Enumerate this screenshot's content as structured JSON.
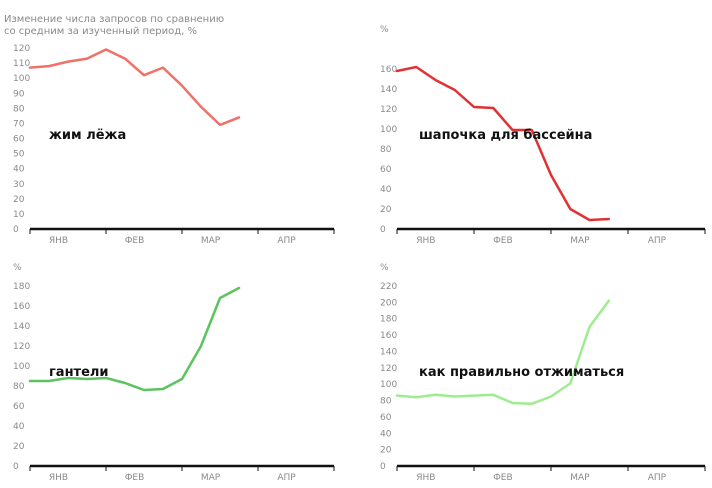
{
  "header_lines": [
    "Изменение числа запросов по сравнению",
    "со средним за изученный период, %"
  ],
  "chart_data": [
    {
      "type": "line",
      "title": "жим лёжа",
      "ylabel": "",
      "ylim": [
        0,
        120
      ],
      "yticks": [
        0,
        10,
        20,
        30,
        40,
        50,
        60,
        70,
        80,
        90,
        100,
        110,
        120
      ],
      "xlim": [
        0,
        16
      ],
      "xticks": [
        {
          "x": 1.5,
          "label": "ЯНВ"
        },
        {
          "x": 5.5,
          "label": "ФЕВ"
        },
        {
          "x": 9.5,
          "label": "МАР"
        },
        {
          "x": 13.5,
          "label": "АПР"
        }
      ],
      "x": [
        0,
        1,
        2,
        3,
        4,
        5,
        6,
        7,
        8,
        9,
        10,
        11
      ],
      "series": [
        {
          "color": "#f07168",
          "values": [
            107,
            108,
            111,
            113,
            119,
            113,
            102,
            107,
            95,
            81,
            69,
            74
          ]
        }
      ]
    },
    {
      "type": "line",
      "title": "шапочка для бассейна",
      "ylabel": "%",
      "ylim": [
        0,
        160
      ],
      "yticks": [
        0,
        20,
        40,
        60,
        80,
        100,
        120,
        140,
        160
      ],
      "xlim": [
        0,
        16
      ],
      "xticks": [
        {
          "x": 1.5,
          "label": "ЯНВ"
        },
        {
          "x": 5.5,
          "label": "ФЕВ"
        },
        {
          "x": 9.5,
          "label": "МАР"
        },
        {
          "x": 13.5,
          "label": "АПР"
        }
      ],
      "x": [
        0,
        1,
        2,
        3,
        4,
        5,
        6,
        7,
        8,
        9,
        10,
        11
      ],
      "series": [
        {
          "color": "#e03232",
          "values": [
            158,
            162,
            149,
            139,
            122,
            121,
            99,
            99,
            54,
            20,
            9,
            10
          ]
        }
      ]
    },
    {
      "type": "line",
      "title": "гантели",
      "ylabel": "%",
      "ylim": [
        0,
        180
      ],
      "yticks": [
        0,
        20,
        40,
        60,
        80,
        100,
        120,
        140,
        160,
        180
      ],
      "xlim": [
        0,
        16
      ],
      "xticks": [
        {
          "x": 1.5,
          "label": "ЯНВ"
        },
        {
          "x": 5.5,
          "label": "ФЕВ"
        },
        {
          "x": 9.5,
          "label": "МАР"
        },
        {
          "x": 13.5,
          "label": "АПР"
        }
      ],
      "x": [
        0,
        1,
        2,
        3,
        4,
        5,
        6,
        7,
        8,
        9,
        10,
        11
      ],
      "series": [
        {
          "color": "#5cc45f",
          "values": [
            85,
            85,
            88,
            87,
            88,
            83,
            76,
            77,
            87,
            120,
            168,
            178
          ]
        }
      ]
    },
    {
      "type": "line",
      "title": "как правильно отжиматься",
      "ylabel": "%",
      "ylim": [
        0,
        220
      ],
      "yticks": [
        0,
        20,
        40,
        60,
        80,
        100,
        120,
        140,
        160,
        180,
        200,
        220
      ],
      "xlim": [
        0,
        16
      ],
      "xticks": [
        {
          "x": 1.5,
          "label": "ЯНВ"
        },
        {
          "x": 5.5,
          "label": "ФЕВ"
        },
        {
          "x": 9.5,
          "label": "МАР"
        },
        {
          "x": 13.5,
          "label": "АПР"
        }
      ],
      "x": [
        0,
        1,
        2,
        3,
        4,
        5,
        6,
        7,
        8,
        9,
        10,
        11
      ],
      "series": [
        {
          "color": "#9ded8f",
          "values": [
            86,
            84,
            87,
            85,
            86,
            87,
            77,
            76,
            85,
            101,
            170,
            202
          ]
        }
      ]
    }
  ]
}
